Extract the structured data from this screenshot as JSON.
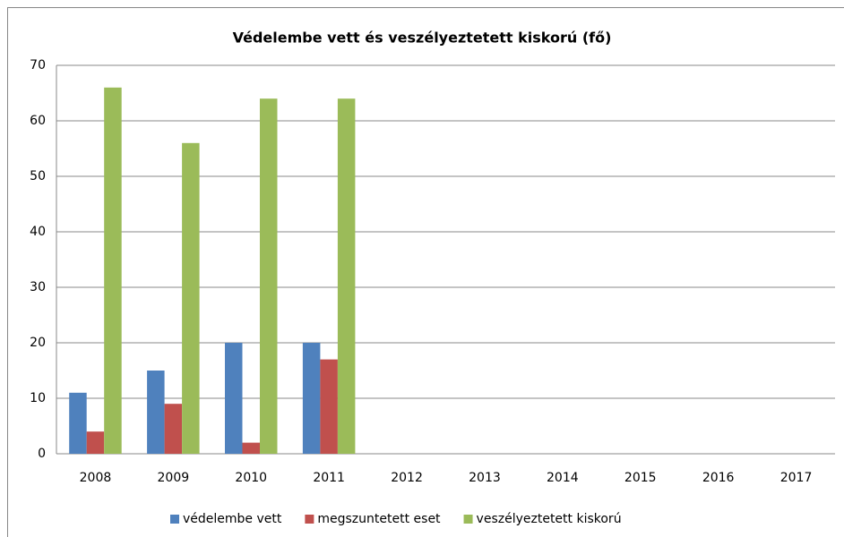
{
  "chart_data": {
    "type": "bar",
    "title": "Védelembe vett és veszélyeztetett kiskorú (fő)",
    "categories": [
      "2008",
      "2009",
      "2010",
      "2011",
      "2012",
      "2013",
      "2014",
      "2015",
      "2016",
      "2017"
    ],
    "series": [
      {
        "name": "védelembe vett",
        "color": "#4f81bd",
        "values": [
          11,
          15,
          20,
          20,
          null,
          null,
          null,
          null,
          null,
          null
        ]
      },
      {
        "name": "megszuntetett eset",
        "color": "#c0504d",
        "values": [
          4,
          9,
          2,
          17,
          null,
          null,
          null,
          null,
          null,
          null
        ]
      },
      {
        "name": "veszélyeztetett kiskorú",
        "color": "#9bbb59",
        "values": [
          66,
          56,
          64,
          64,
          null,
          null,
          null,
          null,
          null,
          null
        ]
      }
    ],
    "ylim": [
      0,
      70
    ],
    "yticks": [
      0,
      10,
      20,
      30,
      40,
      50,
      60,
      70
    ],
    "grid": true,
    "legend": "bottom"
  }
}
